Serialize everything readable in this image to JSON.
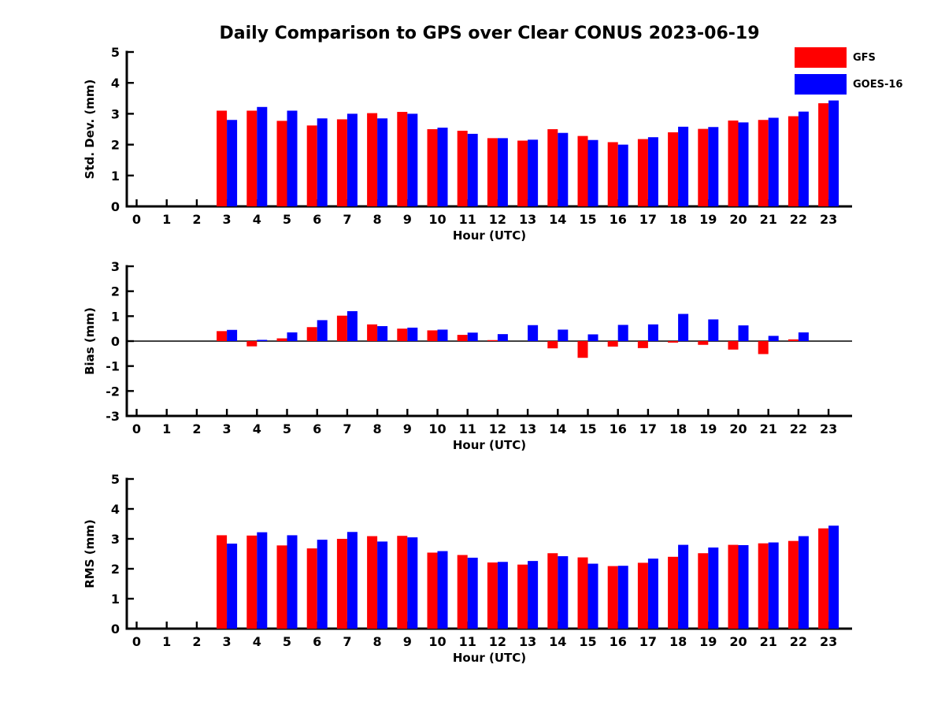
{
  "figure": {
    "title": "Daily Comparison to GPS over Clear CONUS 2023-06-19",
    "background": "#ffffff",
    "axis_color": "#000000",
    "legend": {
      "position": "top-right",
      "entries": [
        {
          "label": "GFS",
          "color": "#ff0000"
        },
        {
          "label": "GOES-16",
          "color": "#0000ff"
        }
      ]
    }
  },
  "chart_data": [
    {
      "id": "std-dev",
      "type": "bar",
      "xlabel": "Hour (UTC)",
      "ylabel": "Std. Dev. (mm)",
      "ylim": [
        0,
        5
      ],
      "yticks": [
        0,
        1,
        2,
        3,
        4,
        5
      ],
      "zero_line": false,
      "grid": false,
      "categories": [
        0,
        1,
        2,
        3,
        4,
        5,
        6,
        7,
        8,
        9,
        10,
        11,
        12,
        13,
        14,
        15,
        16,
        17,
        18,
        19,
        20,
        21,
        22,
        23
      ],
      "note_no_data_hours": [
        0,
        1,
        2
      ],
      "series": [
        {
          "name": "GFS",
          "color": "#ff0000",
          "values": [
            0,
            0,
            0,
            3.1,
            3.1,
            2.77,
            2.62,
            2.82,
            3.02,
            3.06,
            2.5,
            2.45,
            2.21,
            2.13,
            2.5,
            2.28,
            2.08,
            2.18,
            2.4,
            2.51,
            2.78,
            2.8,
            2.92,
            3.34
          ]
        },
        {
          "name": "GOES-16",
          "color": "#0000ff",
          "values": [
            0,
            0,
            0,
            2.8,
            3.22,
            3.1,
            2.85,
            3.0,
            2.85,
            3.0,
            2.55,
            2.35,
            2.21,
            2.16,
            2.38,
            2.15,
            2.0,
            2.24,
            2.58,
            2.57,
            2.72,
            2.87,
            3.07,
            3.43
          ]
        }
      ]
    },
    {
      "id": "bias",
      "type": "bar",
      "xlabel": "Hour (UTC)",
      "ylabel": "Bias (mm)",
      "ylim": [
        -3,
        3
      ],
      "yticks": [
        3,
        2,
        1,
        0,
        -1,
        -2,
        -3
      ],
      "zero_line": true,
      "grid": false,
      "categories": [
        0,
        1,
        2,
        3,
        4,
        5,
        6,
        7,
        8,
        9,
        10,
        11,
        12,
        13,
        14,
        15,
        16,
        17,
        18,
        19,
        20,
        21,
        22,
        23
      ],
      "note_no_data_hours": [
        0,
        1,
        2,
        23
      ],
      "series": [
        {
          "name": "GFS",
          "color": "#ff0000",
          "values": [
            0,
            0,
            0,
            0.4,
            -0.21,
            0.11,
            0.56,
            1.02,
            0.67,
            0.5,
            0.43,
            0.25,
            0.04,
            0,
            -0.29,
            -0.67,
            -0.22,
            -0.28,
            -0.06,
            -0.15,
            -0.34,
            -0.52,
            0.07,
            0
          ]
        },
        {
          "name": "GOES-16",
          "color": "#0000ff",
          "values": [
            0,
            0,
            0,
            0.45,
            0.05,
            0.35,
            0.84,
            1.2,
            0.6,
            0.54,
            0.46,
            0.34,
            0.28,
            0.64,
            0.46,
            0.27,
            0.65,
            0.67,
            1.09,
            0.87,
            0.63,
            0.21,
            0.35,
            0
          ]
        }
      ]
    },
    {
      "id": "rms",
      "type": "bar",
      "xlabel": "Hour (UTC)",
      "ylabel": "RMS (mm)",
      "ylim": [
        0,
        5
      ],
      "yticks": [
        0,
        1,
        2,
        3,
        4,
        5
      ],
      "zero_line": false,
      "grid": false,
      "categories": [
        0,
        1,
        2,
        3,
        4,
        5,
        6,
        7,
        8,
        9,
        10,
        11,
        12,
        13,
        14,
        15,
        16,
        17,
        18,
        19,
        20,
        21,
        22,
        23
      ],
      "note_no_data_hours": [
        0,
        1,
        2
      ],
      "series": [
        {
          "name": "GFS",
          "color": "#ff0000",
          "values": [
            0,
            0,
            0,
            3.12,
            3.11,
            2.78,
            2.68,
            3.0,
            3.09,
            3.1,
            2.54,
            2.46,
            2.21,
            2.14,
            2.52,
            2.38,
            2.09,
            2.2,
            2.4,
            2.52,
            2.8,
            2.85,
            2.93,
            3.35
          ]
        },
        {
          "name": "GOES-16",
          "color": "#0000ff",
          "values": [
            0,
            0,
            0,
            2.84,
            3.22,
            3.12,
            2.97,
            3.23,
            2.91,
            3.05,
            2.59,
            2.37,
            2.23,
            2.26,
            2.42,
            2.17,
            2.1,
            2.34,
            2.8,
            2.71,
            2.79,
            2.88,
            3.09,
            3.44
          ]
        }
      ]
    }
  ]
}
